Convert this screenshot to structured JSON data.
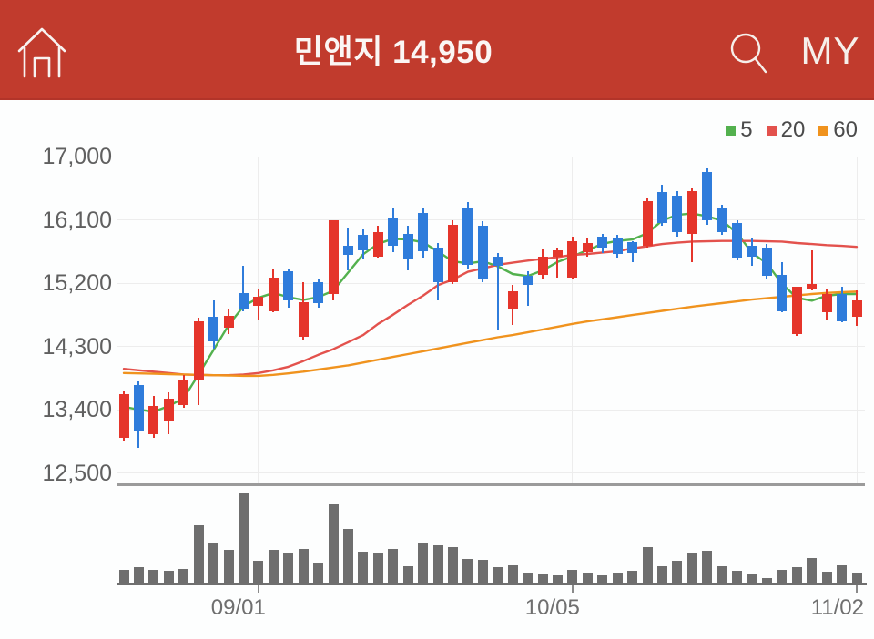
{
  "header": {
    "title": "민앤지 14,950",
    "my_label": "MY"
  },
  "legend": [
    {
      "label": "5",
      "color": "#53B14E"
    },
    {
      "label": "20",
      "color": "#E3524D"
    },
    {
      "label": "60",
      "color": "#F0931E"
    }
  ],
  "colors": {
    "header_bg": "#C13B2D",
    "candle_up": "#E5352B",
    "candle_down": "#2F7CDB",
    "ma5": "#53B14E",
    "ma20": "#E3524D",
    "ma60": "#F0931E",
    "volume_bar": "#6E6E6E",
    "grid": "#EDEDED",
    "axis_text": "#606060",
    "separator": "#9B9B9B",
    "volume_baseline": "#6F6F6F"
  },
  "chart_data": {
    "type": "candlestick",
    "symbol": "민앤지",
    "current_price": "14,950",
    "y_axis": {
      "ticks": [
        17000,
        16100,
        15200,
        14300,
        13400,
        12500
      ],
      "tick_labels": [
        "17,000",
        "16,100",
        "15,200",
        "14,300",
        "13,400",
        "12,500"
      ],
      "range": [
        12500,
        17000
      ]
    },
    "x_axis": {
      "ticks": [
        {
          "label": "09/01",
          "index": 9
        },
        {
          "label": "10/05",
          "index": 30
        },
        {
          "label": "11/02",
          "index": 49
        }
      ]
    },
    "candle_columns": [
      "open",
      "high",
      "low",
      "close"
    ],
    "candles": [
      [
        13000,
        13660,
        12950,
        13620
      ],
      [
        13750,
        13800,
        12850,
        13100
      ],
      [
        13050,
        13600,
        13000,
        13450
      ],
      [
        13250,
        13650,
        13050,
        13550
      ],
      [
        13460,
        13890,
        13420,
        13820
      ],
      [
        13820,
        14710,
        13460,
        14660
      ],
      [
        14720,
        14950,
        14270,
        14370
      ],
      [
        14560,
        14830,
        14470,
        14740
      ],
      [
        15060,
        15450,
        14800,
        14820
      ],
      [
        14870,
        15110,
        14670,
        15000
      ],
      [
        14800,
        15410,
        14790,
        15280
      ],
      [
        15370,
        15400,
        14850,
        14960
      ],
      [
        14440,
        15210,
        14400,
        14930
      ],
      [
        15210,
        15250,
        14850,
        14910
      ],
      [
        15040,
        16100,
        14950,
        16090
      ],
      [
        15730,
        15990,
        15380,
        15600
      ],
      [
        15890,
        15970,
        15540,
        15670
      ],
      [
        15580,
        16020,
        15560,
        15930
      ],
      [
        16120,
        16270,
        15640,
        15730
      ],
      [
        15900,
        16020,
        15380,
        15540
      ],
      [
        16200,
        16280,
        15560,
        15650
      ],
      [
        15700,
        15770,
        14950,
        15210
      ],
      [
        15210,
        16090,
        15190,
        16030
      ],
      [
        16280,
        16350,
        15400,
        15460
      ],
      [
        16020,
        16080,
        15210,
        15250
      ],
      [
        15580,
        15630,
        14540,
        15440
      ],
      [
        14820,
        15170,
        14610,
        15080
      ],
      [
        15310,
        15370,
        14870,
        15180
      ],
      [
        15320,
        15690,
        15260,
        15570
      ],
      [
        15580,
        15700,
        15280,
        15670
      ],
      [
        15280,
        15860,
        15250,
        15790
      ],
      [
        15640,
        15830,
        15580,
        15770
      ],
      [
        15860,
        15900,
        15630,
        15710
      ],
      [
        15840,
        15880,
        15560,
        15610
      ],
      [
        15780,
        15800,
        15500,
        15630
      ],
      [
        15730,
        16420,
        15700,
        16360
      ],
      [
        16490,
        16600,
        16020,
        16060
      ],
      [
        16440,
        16510,
        15860,
        15930
      ],
      [
        15900,
        16560,
        15500,
        16510
      ],
      [
        16780,
        16830,
        16030,
        16090
      ],
      [
        16270,
        16320,
        15890,
        15930
      ],
      [
        16060,
        16100,
        15520,
        15560
      ],
      [
        15730,
        15830,
        15450,
        15580
      ],
      [
        15710,
        15760,
        15260,
        15300
      ],
      [
        15320,
        15500,
        14780,
        14800
      ],
      [
        14480,
        15150,
        14450,
        15150
      ],
      [
        15110,
        15660,
        15090,
        15190
      ],
      [
        14790,
        15110,
        14670,
        15050
      ],
      [
        15050,
        15150,
        14640,
        14660
      ],
      [
        14720,
        15090,
        14590,
        14950
      ]
    ],
    "moving_averages": [
      {
        "period": 5,
        "values": [
          13440,
          13400,
          13370,
          13450,
          13560,
          13900,
          14250,
          14600,
          14870,
          14990,
          15060,
          15000,
          14960,
          15000,
          15090,
          15350,
          15610,
          15760,
          15830,
          15820,
          15780,
          15650,
          15510,
          15480,
          15510,
          15440,
          15330,
          15300,
          15380,
          15500,
          15580,
          15670,
          15760,
          15800,
          15820,
          15910,
          16090,
          16170,
          16190,
          16150,
          16090,
          15910,
          15630,
          15480,
          15190,
          14990,
          14950,
          15020,
          15045,
          15045
        ]
      },
      {
        "period": 20,
        "values": [
          13980,
          13960,
          13940,
          13920,
          13900,
          13895,
          13890,
          13890,
          13900,
          13920,
          13960,
          14010,
          14090,
          14180,
          14260,
          14360,
          14460,
          14620,
          14750,
          14890,
          15020,
          15170,
          15250,
          15360,
          15410,
          15460,
          15490,
          15520,
          15545,
          15570,
          15600,
          15615,
          15635,
          15655,
          15695,
          15725,
          15755,
          15775,
          15790,
          15795,
          15800,
          15800,
          15800,
          15795,
          15790,
          15770,
          15755,
          15740,
          15730,
          15715
        ]
      },
      {
        "period": 60,
        "values": [
          13920,
          13915,
          13910,
          13905,
          13900,
          13895,
          13890,
          13885,
          13880,
          13880,
          13895,
          13915,
          13940,
          13970,
          14000,
          14030,
          14070,
          14110,
          14150,
          14190,
          14230,
          14270,
          14310,
          14350,
          14390,
          14430,
          14460,
          14500,
          14540,
          14580,
          14620,
          14655,
          14685,
          14715,
          14745,
          14775,
          14805,
          14835,
          14865,
          14890,
          14915,
          14940,
          14965,
          14985,
          15005,
          15025,
          15045,
          15060,
          15070,
          15080
        ]
      }
    ],
    "volume_relative": [
      15,
      18,
      15,
      14,
      16,
      64,
      45,
      37,
      99,
      25,
      37,
      34,
      38,
      22,
      87,
      60,
      35,
      34,
      38,
      19,
      44,
      42,
      40,
      27,
      26,
      18,
      20,
      12,
      10,
      9,
      15,
      12,
      9,
      12,
      14,
      40,
      19,
      25,
      34,
      36,
      19,
      14,
      10,
      6,
      15,
      18,
      28,
      13,
      20,
      12
    ]
  }
}
